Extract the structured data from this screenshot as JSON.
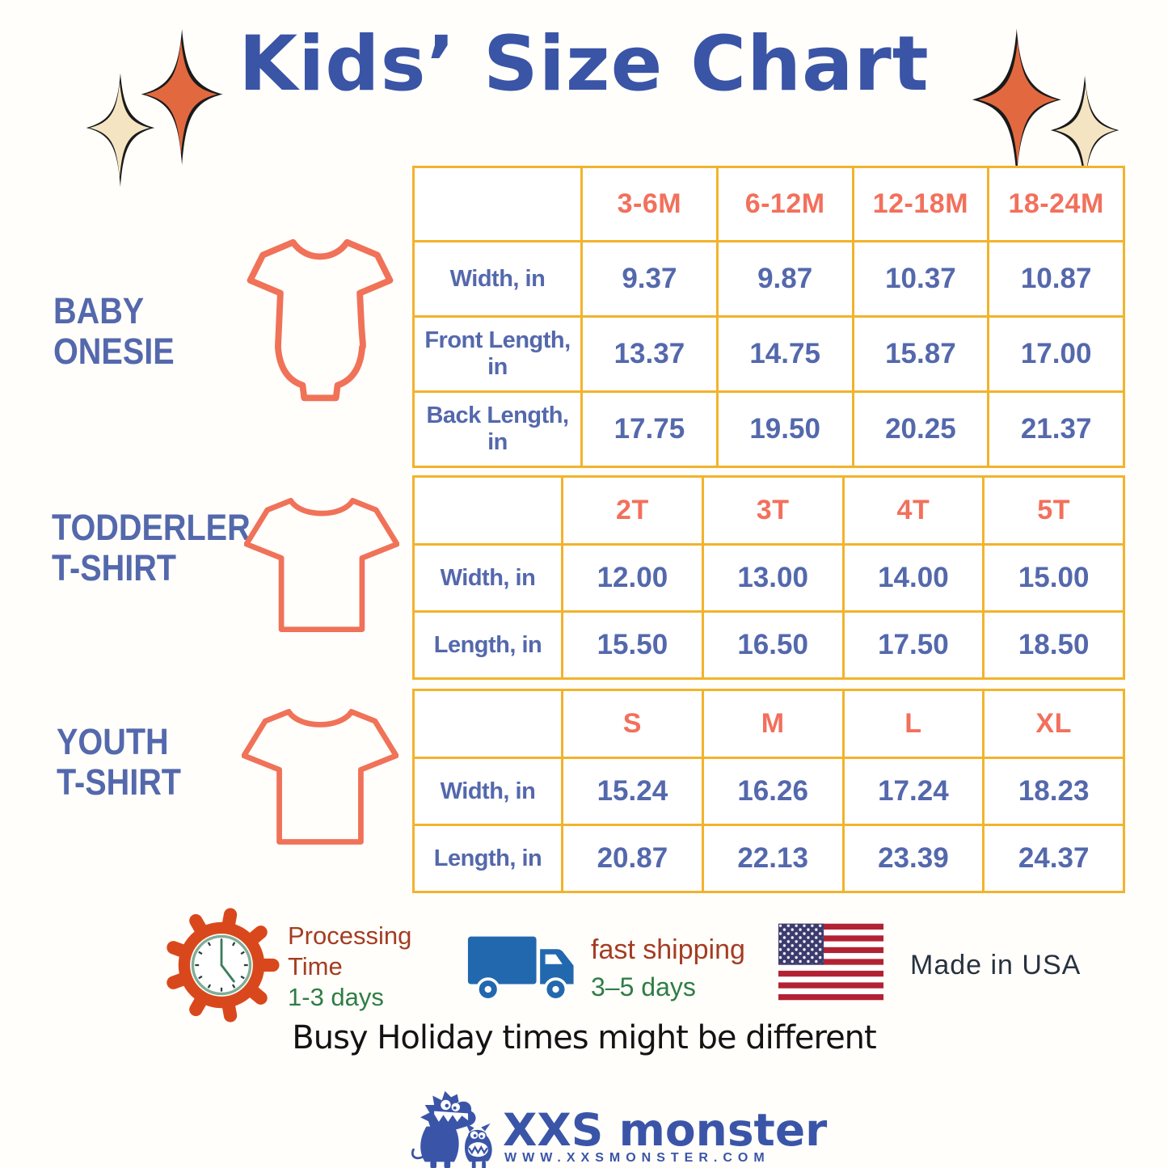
{
  "title": "Kids’ Size Chart",
  "sections": [
    {
      "line1": "BABY",
      "line2": "ONESIE"
    },
    {
      "line1": "TODDERLER",
      "line2": "T-SHIRT"
    },
    {
      "line1": "YOUTH",
      "line2": "T-SHIRT"
    }
  ],
  "tables": [
    {
      "columns": [
        "",
        "3-6M",
        "6-12M",
        "12-18M",
        "18-24M"
      ],
      "rows": [
        {
          "label": "Width, in",
          "values": [
            "9.37",
            "9.87",
            "10.37",
            "10.87"
          ]
        },
        {
          "label": "Front Length, in",
          "values": [
            "13.37",
            "14.75",
            "15.87",
            "17.00"
          ]
        },
        {
          "label": "Back Length, in",
          "values": [
            "17.75",
            "19.50",
            "20.25",
            "21.37"
          ]
        }
      ]
    },
    {
      "columns": [
        "",
        "2T",
        "3T",
        "4T",
        "5T"
      ],
      "rows": [
        {
          "label": "Width, in",
          "values": [
            "12.00",
            "13.00",
            "14.00",
            "15.00"
          ]
        },
        {
          "label": "Length, in",
          "values": [
            "15.50",
            "16.50",
            "17.50",
            "18.50"
          ]
        }
      ]
    },
    {
      "columns": [
        "",
        "S",
        "M",
        "L",
        "XL"
      ],
      "rows": [
        {
          "label": "Width, in",
          "values": [
            "15.24",
            "16.26",
            "17.24",
            "18.23"
          ]
        },
        {
          "label": "Length, in",
          "values": [
            "20.87",
            "22.13",
            "23.39",
            "24.37"
          ]
        }
      ]
    }
  ],
  "footer": {
    "processing": {
      "title_line1": "Processing",
      "title_line2": "Time",
      "duration": "1-3 days"
    },
    "shipping": {
      "title": "fast shipping",
      "duration": "3–5 days"
    },
    "origin": "Made in USA",
    "notice": "Busy Holiday times might be different"
  },
  "brand": {
    "name": "XXS monster",
    "website": "WWW.XXSMONSTER.COM"
  },
  "colors": {
    "title_blue": "#3A54A6",
    "table_text_blue": "#5468AC",
    "header_coral": "#F2705C",
    "table_border_gold": "#F2B32C",
    "garment_coral": "#F07258",
    "star_orange": "#E2693F",
    "star_cream": "#F5E4C2",
    "gear_red": "#D9481C",
    "clock_green": "#7FAE96",
    "truck_blue": "#2268AE",
    "accent_red_text": "#A43D22",
    "accent_green_text": "#2F7D44",
    "flag_red": "#B22234",
    "flag_navy": "#3C3B6E",
    "logo_blue": "#3A55A8"
  }
}
